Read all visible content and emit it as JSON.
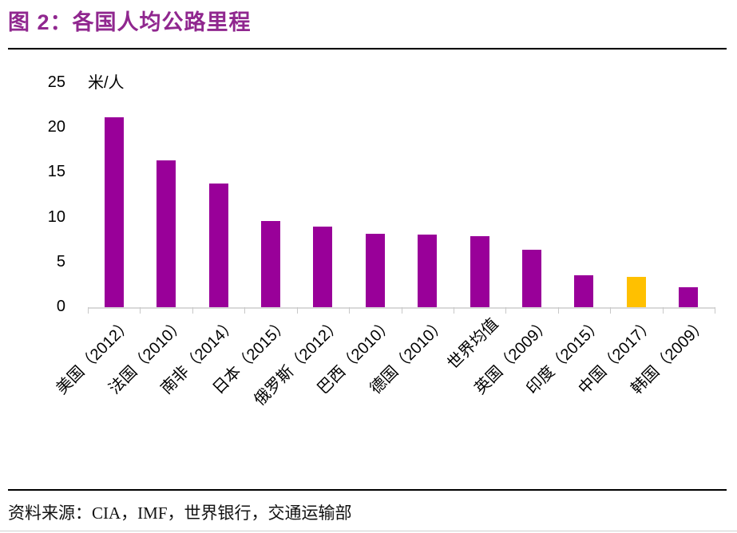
{
  "page": {
    "title": "图 2：各国人均公路里程",
    "source_text": "资料来源：CIA，IMF，世界银行，交通运输部"
  },
  "chart_data": {
    "type": "bar",
    "title": "各国人均公路里程",
    "unit_label": "米/人",
    "categories": [
      "美国（2012）",
      "法国（2010）",
      "南非（2014）",
      "日本（2015）",
      "俄罗斯（2012）",
      "巴西（2010）",
      "德国（2010）",
      "世界均值",
      "英国（2009）",
      "印度（2015）",
      "中国（2017）",
      "韩国（2009）"
    ],
    "values": [
      21.2,
      16.4,
      13.8,
      9.6,
      9.0,
      8.2,
      8.1,
      7.9,
      6.4,
      3.6,
      3.4,
      2.2
    ],
    "highlight_index": 10,
    "ylim": [
      0,
      25
    ],
    "yticks": [
      0,
      5,
      10,
      15,
      20,
      25
    ],
    "xlabel": "",
    "ylabel": "米/人",
    "grid": "off",
    "legend": "none",
    "colors": {
      "bar": "#990099",
      "highlight": "#FFC000",
      "title": "#90278F",
      "axis": "#D9D9D9",
      "tick": "#C8C8C8",
      "text": "#000000"
    }
  }
}
